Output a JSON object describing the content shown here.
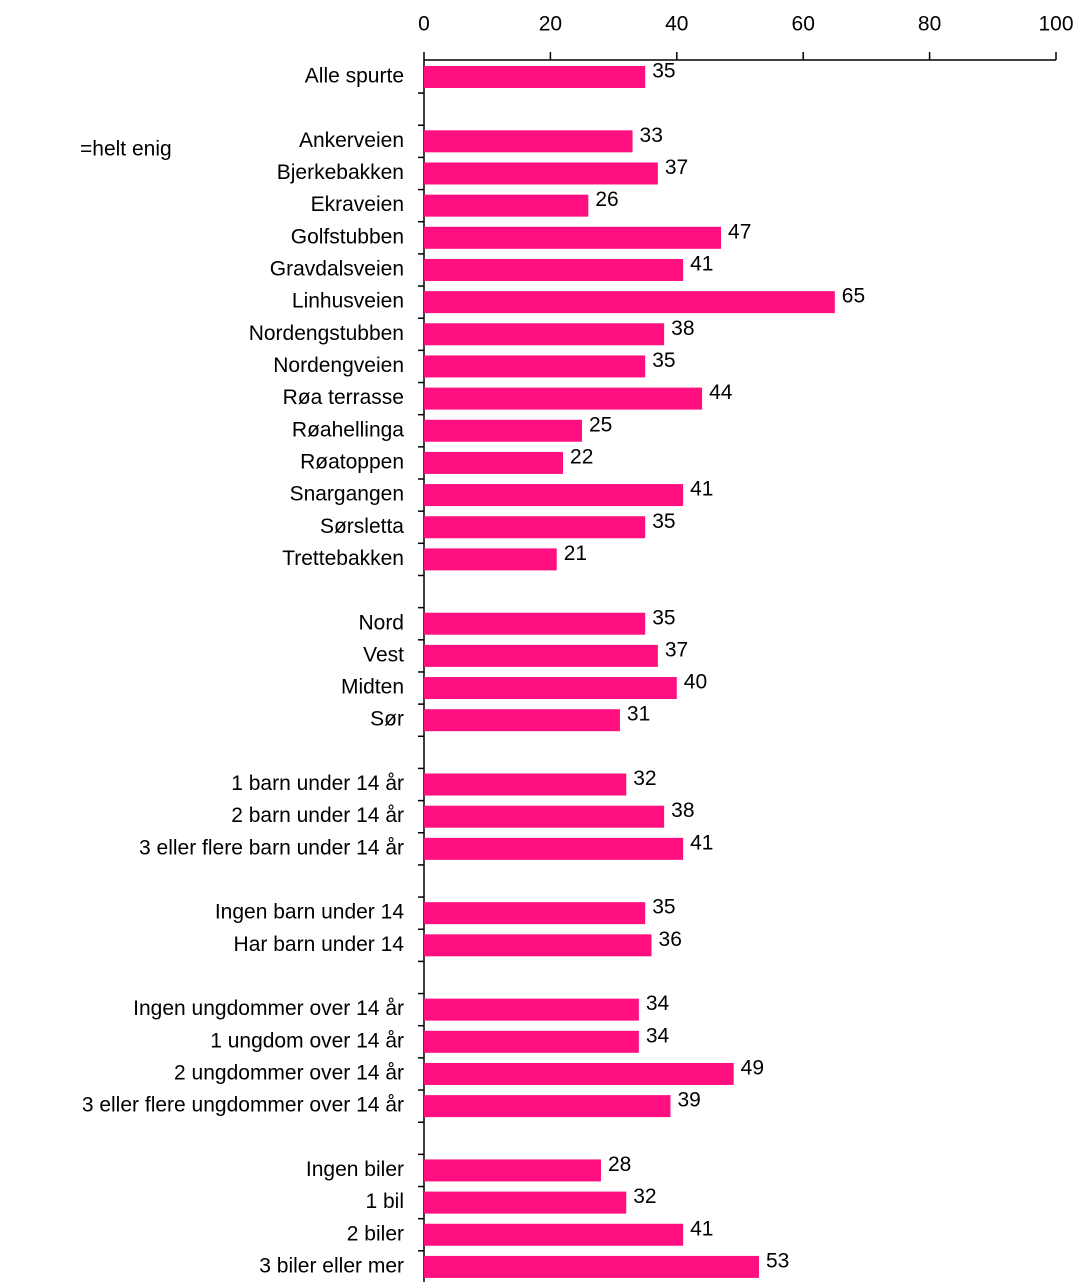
{
  "chart_data": {
    "type": "barh",
    "subtitle": "=helt enig",
    "categories": [
      "Alle spurte",
      null,
      "Ankerveien",
      "Bjerkebakken",
      "Ekraveien",
      "Golfstubben",
      "Gravdalsveien",
      "Linhusveien",
      "Nordengstubben",
      "Nordengveien",
      "Røa terrasse",
      "Røahellinga",
      "Røatoppen",
      "Snargangen",
      "Sørsletta",
      "Trettebakken",
      null,
      "Nord",
      "Vest",
      "Midten",
      "Sør",
      null,
      "1 barn under 14 år",
      "2 barn under 14 år",
      "3 eller flere barn under 14 år",
      null,
      "Ingen barn under 14",
      "Har barn under 14",
      null,
      "Ingen ungdommer over 14 år",
      "1 ungdom over 14 år",
      "2 ungdommer over 14 år",
      "3 eller flere ungdommer over 14 år",
      null,
      "Ingen biler",
      "1 bil",
      "2 biler",
      "3 biler eller mer"
    ],
    "values": [
      35,
      null,
      33,
      37,
      26,
      47,
      41,
      65,
      38,
      35,
      44,
      25,
      22,
      41,
      35,
      21,
      null,
      35,
      37,
      40,
      31,
      null,
      32,
      38,
      41,
      null,
      35,
      36,
      null,
      34,
      34,
      49,
      39,
      null,
      28,
      32,
      41,
      53
    ],
    "color": "#ff0f80",
    "xlim": [
      0,
      100
    ],
    "xticks": [
      0,
      20,
      40,
      60,
      80,
      100
    ]
  }
}
